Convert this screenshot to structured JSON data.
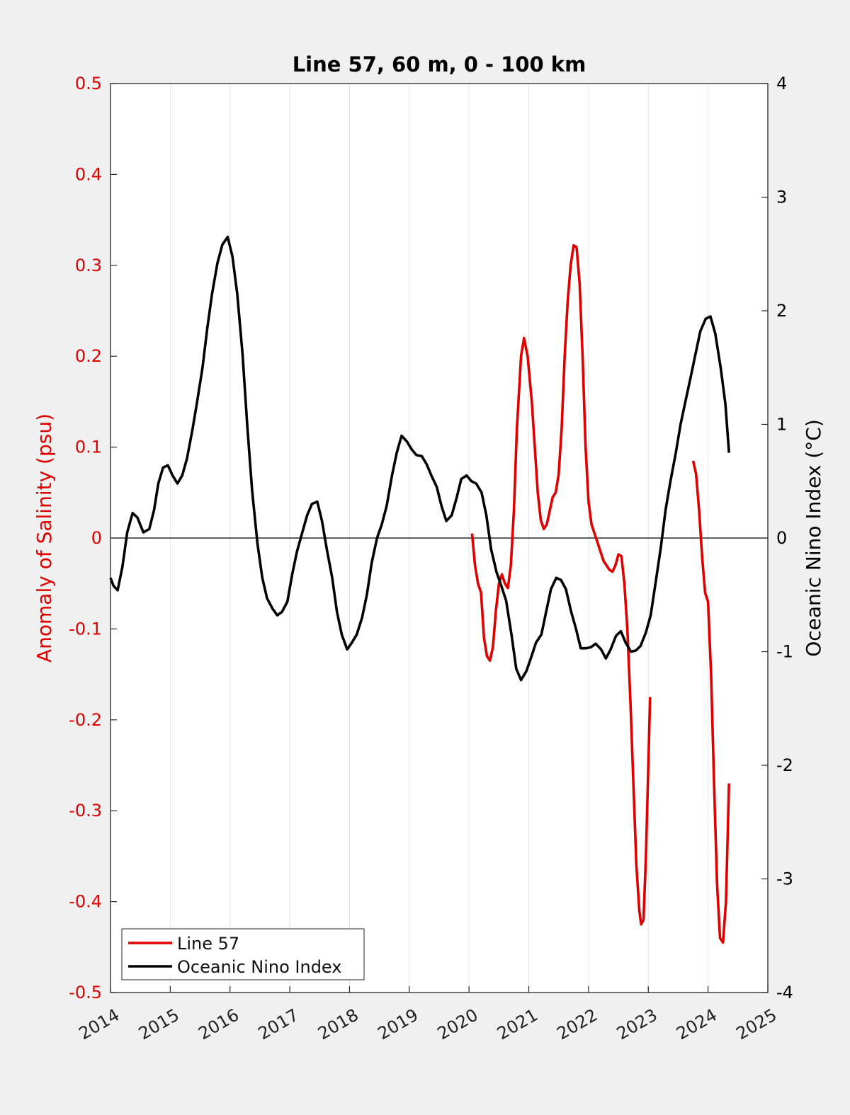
{
  "chart_data": {
    "type": "line",
    "title": "Line 57, 60 m, 0 - 100 km",
    "ylabel_left": "Anomaly of Salinity (psu)",
    "ylabel_right": "Oceanic Nino Index (°C)",
    "xlim": [
      2014,
      2025
    ],
    "ylim_left": [
      -0.5,
      0.5
    ],
    "ylim_right": [
      -4,
      4
    ],
    "x_ticks": [
      "2014",
      "2015",
      "2016",
      "2017",
      "2018",
      "2019",
      "2020",
      "2021",
      "2022",
      "2023",
      "2024",
      "2025"
    ],
    "y_ticks_left": [
      "-0.5",
      "-0.4",
      "-0.3",
      "-0.2",
      "-0.1",
      "0",
      "0.1",
      "0.2",
      "0.3",
      "0.4",
      "0.5"
    ],
    "y_ticks_right": [
      "-4",
      "-3",
      "-2",
      "-1",
      "0",
      "1",
      "2",
      "3",
      "4"
    ],
    "grid": "vertical",
    "zero_line": true,
    "legend": {
      "placement": "bottom-left"
    },
    "colors": {
      "left_axis": "#e00000",
      "right_axis": "#000000"
    },
    "series": [
      {
        "name": "Line 57",
        "axis": "left",
        "color": "#e00000",
        "segments": [
          [
            [
              2020.05,
              0.005
            ],
            [
              2020.1,
              -0.03
            ],
            [
              2020.15,
              -0.05
            ],
            [
              2020.2,
              -0.06
            ],
            [
              2020.25,
              -0.11
            ],
            [
              2020.3,
              -0.13
            ],
            [
              2020.35,
              -0.135
            ],
            [
              2020.4,
              -0.12
            ],
            [
              2020.45,
              -0.08
            ],
            [
              2020.5,
              -0.05
            ],
            [
              2020.55,
              -0.04
            ],
            [
              2020.6,
              -0.05
            ],
            [
              2020.65,
              -0.055
            ],
            [
              2020.7,
              -0.03
            ],
            [
              2020.75,
              0.03
            ],
            [
              2020.8,
              0.12
            ],
            [
              2020.87,
              0.2
            ],
            [
              2020.92,
              0.22
            ],
            [
              2020.98,
              0.2
            ],
            [
              2021.05,
              0.15
            ],
            [
              2021.1,
              0.1
            ],
            [
              2021.15,
              0.05
            ],
            [
              2021.2,
              0.02
            ],
            [
              2021.25,
              0.01
            ],
            [
              2021.3,
              0.015
            ],
            [
              2021.35,
              0.03
            ],
            [
              2021.4,
              0.045
            ],
            [
              2021.45,
              0.05
            ],
            [
              2021.5,
              0.07
            ],
            [
              2021.55,
              0.12
            ],
            [
              2021.6,
              0.2
            ],
            [
              2021.65,
              0.26
            ],
            [
              2021.7,
              0.3
            ],
            [
              2021.75,
              0.322
            ],
            [
              2021.8,
              0.32
            ],
            [
              2021.85,
              0.28
            ],
            [
              2021.9,
              0.2
            ],
            [
              2021.95,
              0.1
            ],
            [
              2022.0,
              0.04
            ],
            [
              2022.05,
              0.015
            ],
            [
              2022.1,
              0.005
            ],
            [
              2022.15,
              -0.005
            ],
            [
              2022.2,
              -0.015
            ],
            [
              2022.25,
              -0.025
            ],
            [
              2022.3,
              -0.03
            ],
            [
              2022.35,
              -0.035
            ],
            [
              2022.4,
              -0.037
            ],
            [
              2022.45,
              -0.03
            ],
            [
              2022.5,
              -0.018
            ],
            [
              2022.55,
              -0.02
            ],
            [
              2022.6,
              -0.05
            ],
            [
              2022.65,
              -0.1
            ],
            [
              2022.7,
              -0.18
            ],
            [
              2022.75,
              -0.27
            ],
            [
              2022.8,
              -0.36
            ],
            [
              2022.85,
              -0.41
            ],
            [
              2022.88,
              -0.425
            ],
            [
              2022.92,
              -0.42
            ],
            [
              2022.96,
              -0.35
            ],
            [
              2023.0,
              -0.25
            ],
            [
              2023.03,
              -0.175
            ]
          ],
          [
            [
              2023.75,
              0.085
            ],
            [
              2023.8,
              0.07
            ],
            [
              2023.85,
              0.03
            ],
            [
              2023.9,
              -0.02
            ],
            [
              2023.95,
              -0.06
            ],
            [
              2024.0,
              -0.07
            ],
            [
              2024.05,
              -0.15
            ],
            [
              2024.1,
              -0.27
            ],
            [
              2024.15,
              -0.38
            ],
            [
              2024.2,
              -0.44
            ],
            [
              2024.25,
              -0.445
            ],
            [
              2024.3,
              -0.4
            ],
            [
              2024.35,
              -0.27
            ]
          ]
        ]
      },
      {
        "name": "Oceanic Nino Index",
        "axis": "right",
        "color": "#000000",
        "segments": [
          [
            [
              2014.0,
              -0.35
            ],
            [
              2014.05,
              -0.42
            ],
            [
              2014.12,
              -0.46
            ],
            [
              2014.2,
              -0.25
            ],
            [
              2014.28,
              0.05
            ],
            [
              2014.37,
              0.22
            ],
            [
              2014.45,
              0.18
            ],
            [
              2014.55,
              0.05
            ],
            [
              2014.65,
              0.08
            ],
            [
              2014.73,
              0.25
            ],
            [
              2014.8,
              0.48
            ],
            [
              2014.88,
              0.62
            ],
            [
              2014.96,
              0.64
            ],
            [
              2015.04,
              0.55
            ],
            [
              2015.12,
              0.48
            ],
            [
              2015.2,
              0.55
            ],
            [
              2015.28,
              0.7
            ],
            [
              2015.37,
              0.95
            ],
            [
              2015.45,
              1.2
            ],
            [
              2015.54,
              1.5
            ],
            [
              2015.62,
              1.85
            ],
            [
              2015.7,
              2.15
            ],
            [
              2015.79,
              2.42
            ],
            [
              2015.87,
              2.58
            ],
            [
              2015.96,
              2.65
            ],
            [
              2016.04,
              2.48
            ],
            [
              2016.12,
              2.15
            ],
            [
              2016.21,
              1.62
            ],
            [
              2016.29,
              0.98
            ],
            [
              2016.37,
              0.42
            ],
            [
              2016.46,
              -0.05
            ],
            [
              2016.54,
              -0.35
            ],
            [
              2016.62,
              -0.53
            ],
            [
              2016.71,
              -0.62
            ],
            [
              2016.79,
              -0.68
            ],
            [
              2016.87,
              -0.65
            ],
            [
              2016.96,
              -0.56
            ],
            [
              2017.04,
              -0.32
            ],
            [
              2017.12,
              -0.12
            ],
            [
              2017.21,
              0.05
            ],
            [
              2017.29,
              0.2
            ],
            [
              2017.37,
              0.3
            ],
            [
              2017.46,
              0.32
            ],
            [
              2017.54,
              0.15
            ],
            [
              2017.62,
              -0.1
            ],
            [
              2017.71,
              -0.35
            ],
            [
              2017.79,
              -0.65
            ],
            [
              2017.87,
              -0.85
            ],
            [
              2017.96,
              -0.98
            ],
            [
              2018.04,
              -0.92
            ],
            [
              2018.12,
              -0.85
            ],
            [
              2018.21,
              -0.7
            ],
            [
              2018.29,
              -0.5
            ],
            [
              2018.37,
              -0.22
            ],
            [
              2018.46,
              0.0
            ],
            [
              2018.54,
              0.12
            ],
            [
              2018.62,
              0.28
            ],
            [
              2018.71,
              0.55
            ],
            [
              2018.79,
              0.75
            ],
            [
              2018.87,
              0.9
            ],
            [
              2018.96,
              0.85
            ],
            [
              2019.04,
              0.78
            ],
            [
              2019.12,
              0.73
            ],
            [
              2019.21,
              0.72
            ],
            [
              2019.29,
              0.65
            ],
            [
              2019.37,
              0.55
            ],
            [
              2019.46,
              0.45
            ],
            [
              2019.54,
              0.28
            ],
            [
              2019.62,
              0.15
            ],
            [
              2019.71,
              0.2
            ],
            [
              2019.79,
              0.35
            ],
            [
              2019.87,
              0.52
            ],
            [
              2019.96,
              0.55
            ],
            [
              2020.04,
              0.5
            ],
            [
              2020.12,
              0.48
            ],
            [
              2020.21,
              0.4
            ],
            [
              2020.29,
              0.2
            ],
            [
              2020.37,
              -0.1
            ],
            [
              2020.46,
              -0.3
            ],
            [
              2020.54,
              -0.42
            ],
            [
              2020.62,
              -0.55
            ],
            [
              2020.71,
              -0.85
            ],
            [
              2020.79,
              -1.15
            ],
            [
              2020.87,
              -1.25
            ],
            [
              2020.96,
              -1.17
            ],
            [
              2021.04,
              -1.05
            ],
            [
              2021.12,
              -0.92
            ],
            [
              2021.21,
              -0.85
            ],
            [
              2021.29,
              -0.65
            ],
            [
              2021.37,
              -0.45
            ],
            [
              2021.46,
              -0.35
            ],
            [
              2021.54,
              -0.37
            ],
            [
              2021.62,
              -0.45
            ],
            [
              2021.71,
              -0.65
            ],
            [
              2021.79,
              -0.8
            ],
            [
              2021.87,
              -0.97
            ],
            [
              2021.96,
              -0.97
            ],
            [
              2022.04,
              -0.96
            ],
            [
              2022.12,
              -0.93
            ],
            [
              2022.21,
              -0.98
            ],
            [
              2022.29,
              -1.06
            ],
            [
              2022.37,
              -0.98
            ],
            [
              2022.46,
              -0.86
            ],
            [
              2022.54,
              -0.82
            ],
            [
              2022.62,
              -0.92
            ],
            [
              2022.71,
              -1.0
            ],
            [
              2022.79,
              -0.99
            ],
            [
              2022.87,
              -0.95
            ],
            [
              2022.96,
              -0.83
            ],
            [
              2023.04,
              -0.68
            ],
            [
              2023.12,
              -0.4
            ],
            [
              2023.21,
              -0.08
            ],
            [
              2023.29,
              0.25
            ],
            [
              2023.37,
              0.5
            ],
            [
              2023.46,
              0.75
            ],
            [
              2023.54,
              1.0
            ],
            [
              2023.62,
              1.2
            ],
            [
              2023.71,
              1.42
            ],
            [
              2023.79,
              1.62
            ],
            [
              2023.87,
              1.82
            ],
            [
              2023.96,
              1.93
            ],
            [
              2024.04,
              1.95
            ],
            [
              2024.12,
              1.8
            ],
            [
              2024.21,
              1.5
            ],
            [
              2024.29,
              1.18
            ],
            [
              2024.35,
              0.75
            ]
          ]
        ]
      }
    ]
  }
}
